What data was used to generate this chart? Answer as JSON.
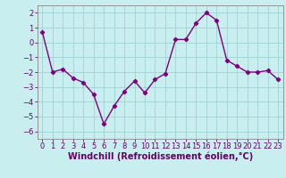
{
  "x": [
    0,
    1,
    2,
    3,
    4,
    5,
    6,
    7,
    8,
    9,
    10,
    11,
    12,
    13,
    14,
    15,
    16,
    17,
    18,
    19,
    20,
    21,
    22,
    23
  ],
  "y": [
    0.7,
    -2.0,
    -1.8,
    -2.4,
    -2.7,
    -3.5,
    -5.5,
    -4.3,
    -3.3,
    -2.6,
    -3.4,
    -2.5,
    -2.1,
    0.2,
    0.2,
    1.3,
    2.0,
    1.5,
    -1.2,
    -1.6,
    -2.0,
    -2.0,
    -1.9,
    -2.5
  ],
  "line_color": "#800080",
  "marker": "D",
  "marker_size": 2.2,
  "bg_color": "#c8eef0",
  "grid_color": "#99cccc",
  "xlabel": "Windchill (Refroidissement éolien,°C)",
  "xlim": [
    -0.5,
    23.5
  ],
  "ylim": [
    -6.5,
    2.5
  ],
  "yticks": [
    -6,
    -5,
    -4,
    -3,
    -2,
    -1,
    0,
    1,
    2
  ],
  "xticks": [
    0,
    1,
    2,
    3,
    4,
    5,
    6,
    7,
    8,
    9,
    10,
    11,
    12,
    13,
    14,
    15,
    16,
    17,
    18,
    19,
    20,
    21,
    22,
    23
  ],
  "tick_fontsize": 6.0,
  "xlabel_fontsize": 7.0,
  "line_width": 1.0
}
